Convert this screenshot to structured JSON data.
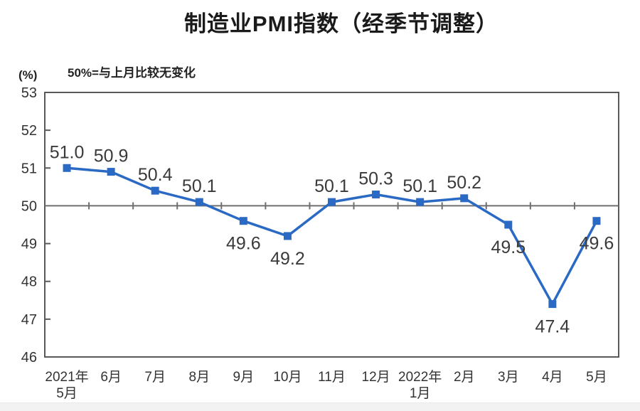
{
  "page": {
    "title": "制造业PMI指数（经季节调整）",
    "subtitle": "50%=与上月比较无变化",
    "y_unit": "(%)"
  },
  "chart_data": {
    "type": "line",
    "title": "制造业PMI指数（经季节调整）",
    "subtitle": "50%=与上月比较无变化",
    "ylabel": "(%)",
    "categories": [
      [
        "2021年",
        "5月"
      ],
      [
        "6月"
      ],
      [
        "7月"
      ],
      [
        "8月"
      ],
      [
        "9月"
      ],
      [
        "10月"
      ],
      [
        "11月"
      ],
      [
        "12月"
      ],
      [
        "2022年",
        "1月"
      ],
      [
        "2月"
      ],
      [
        "3月"
      ],
      [
        "4月"
      ],
      [
        "5月"
      ]
    ],
    "values": [
      51.0,
      50.9,
      50.4,
      50.1,
      49.6,
      49.2,
      50.1,
      50.3,
      50.1,
      50.2,
      49.5,
      47.4,
      49.6
    ],
    "point_labels": [
      "51.0",
      "50.9",
      "50.4",
      "50.1",
      "49.6",
      "49.2",
      "50.1",
      "50.3",
      "50.1",
      "50.2",
      "49.5",
      "47.4",
      "49.6"
    ],
    "ylim": [
      46,
      53
    ],
    "yticks": [
      53,
      52,
      51,
      50,
      49,
      48,
      47,
      46
    ],
    "reference_line": 50,
    "grid": false,
    "legend_position": "none",
    "marker": "square",
    "colors": {
      "line": "#2a6ac4",
      "marker": "#2a6ac4",
      "plot_border": "#595959",
      "reference_line": "#6f6f6f",
      "tick_text": "#333333",
      "point_label_text": "#3a3a3a"
    }
  }
}
